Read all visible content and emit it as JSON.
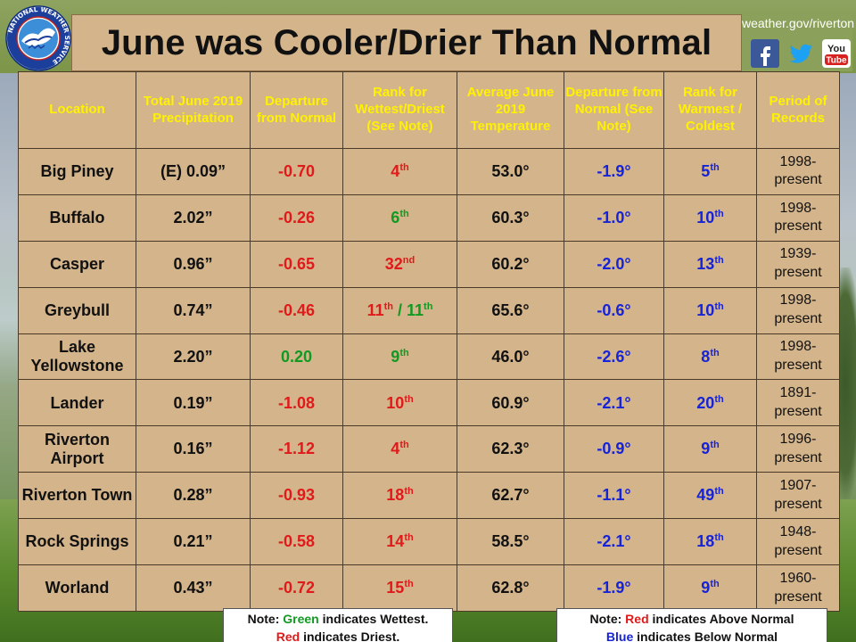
{
  "title": "June was Cooler/Drier Than Normal",
  "logo": {
    "ring_text": "NATIONAL WEATHER SERVICE"
  },
  "social": {
    "url": "weather.gov/riverton",
    "icons": [
      "facebook-icon",
      "twitter-icon",
      "youtube-icon"
    ]
  },
  "colors": {
    "header_text": "#fff200",
    "red": "#e01a1a",
    "green": "#119a22",
    "blue": "#1623d6",
    "table_bg": "#d4b48a"
  },
  "table": {
    "headers": [
      "Location",
      "Total June 2019 Precipitation",
      "Departure from Normal",
      "Rank for Wettest/Driest (See Note)",
      "Average June 2019 Temperature",
      "Departure from Normal (See Note)",
      "Rank for Warmest / Coldest",
      "Period of Records"
    ],
    "rows": [
      {
        "location": "Big Piney",
        "precip": "(E) 0.09”",
        "precip_dep": "-0.70",
        "precip_dep_color": "red",
        "wet_rank": "4",
        "wet_rank_sup": "th",
        "wet_rank_color": "red",
        "temp": "53.0°",
        "temp_dep": "-1.9°",
        "temp_rank": "5",
        "temp_rank_sup": "th",
        "period": "1998-present"
      },
      {
        "location": "Buffalo",
        "precip": "2.02”",
        "precip_dep": "-0.26",
        "precip_dep_color": "red",
        "wet_rank": "6",
        "wet_rank_sup": "th",
        "wet_rank_color": "green",
        "temp": "60.3°",
        "temp_dep": "-1.0°",
        "temp_rank": "10",
        "temp_rank_sup": "th",
        "period": "1998-present"
      },
      {
        "location": "Casper",
        "precip": "0.96”",
        "precip_dep": "-0.65",
        "precip_dep_color": "red",
        "wet_rank": "32",
        "wet_rank_sup": "nd",
        "wet_rank_color": "red",
        "temp": "60.2°",
        "temp_dep": "-2.0°",
        "temp_rank": "13",
        "temp_rank_sup": "th",
        "period": "1939-present"
      },
      {
        "location": "Greybull",
        "precip": "0.74”",
        "precip_dep": "-0.46",
        "precip_dep_color": "red",
        "wet_rank": "11",
        "wet_rank_sup": "th",
        "wet_rank_color": "red",
        "wet_rank2": "11",
        "wet_rank2_sup": "th",
        "wet_rank2_color": "green",
        "temp": "65.6°",
        "temp_dep": "-0.6°",
        "temp_rank": "10",
        "temp_rank_sup": "th",
        "period": "1998-present"
      },
      {
        "location": "Lake Yellowstone",
        "precip": "2.20”",
        "precip_dep": "0.20",
        "precip_dep_color": "green",
        "wet_rank": "9",
        "wet_rank_sup": "th",
        "wet_rank_color": "green",
        "temp": "46.0°",
        "temp_dep": "-2.6°",
        "temp_rank": "8",
        "temp_rank_sup": "th",
        "period": "1998-present"
      },
      {
        "location": "Lander",
        "precip": "0.19”",
        "precip_dep": "-1.08",
        "precip_dep_color": "red",
        "wet_rank": "10",
        "wet_rank_sup": "th",
        "wet_rank_color": "red",
        "temp": "60.9°",
        "temp_dep": "-2.1°",
        "temp_rank": "20",
        "temp_rank_sup": "th",
        "period": "1891-present"
      },
      {
        "location": "Riverton Airport",
        "precip": "0.16”",
        "precip_dep": "-1.12",
        "precip_dep_color": "red",
        "wet_rank": "4",
        "wet_rank_sup": "th",
        "wet_rank_color": "red",
        "temp": "62.3°",
        "temp_dep": "-0.9°",
        "temp_rank": "9",
        "temp_rank_sup": "th",
        "period": "1996-present"
      },
      {
        "location": "Riverton Town",
        "precip": "0.28”",
        "precip_dep": "-0.93",
        "precip_dep_color": "red",
        "wet_rank": "18",
        "wet_rank_sup": "th",
        "wet_rank_color": "red",
        "temp": "62.7°",
        "temp_dep": "-1.1°",
        "temp_rank": "49",
        "temp_rank_sup": "th",
        "period": "1907-present"
      },
      {
        "location": "Rock Springs",
        "precip": "0.21”",
        "precip_dep": "-0.58",
        "precip_dep_color": "red",
        "wet_rank": "14",
        "wet_rank_sup": "th",
        "wet_rank_color": "red",
        "temp": "58.5°",
        "temp_dep": "-2.1°",
        "temp_rank": "18",
        "temp_rank_sup": "th",
        "period": "1948-present"
      },
      {
        "location": "Worland",
        "precip": "0.43”",
        "precip_dep": "-0.72",
        "precip_dep_color": "red",
        "wet_rank": "15",
        "wet_rank_sup": "th",
        "wet_rank_color": "red",
        "temp": "62.8°",
        "temp_dep": "-1.9°",
        "temp_rank": "9",
        "temp_rank_sup": "th",
        "period": "1960-present"
      }
    ]
  },
  "notes": {
    "left": {
      "prefix": "Note: ",
      "green_word": "Green",
      "green_rest": " indicates Wettest.",
      "red_word": "Red",
      "red_rest": " indicates Driest."
    },
    "right": {
      "prefix": "Note: ",
      "red_word": "Red",
      "red_rest": " indicates Above Normal",
      "blue_word": "Blue",
      "blue_rest": " indicates Below Normal"
    }
  }
}
